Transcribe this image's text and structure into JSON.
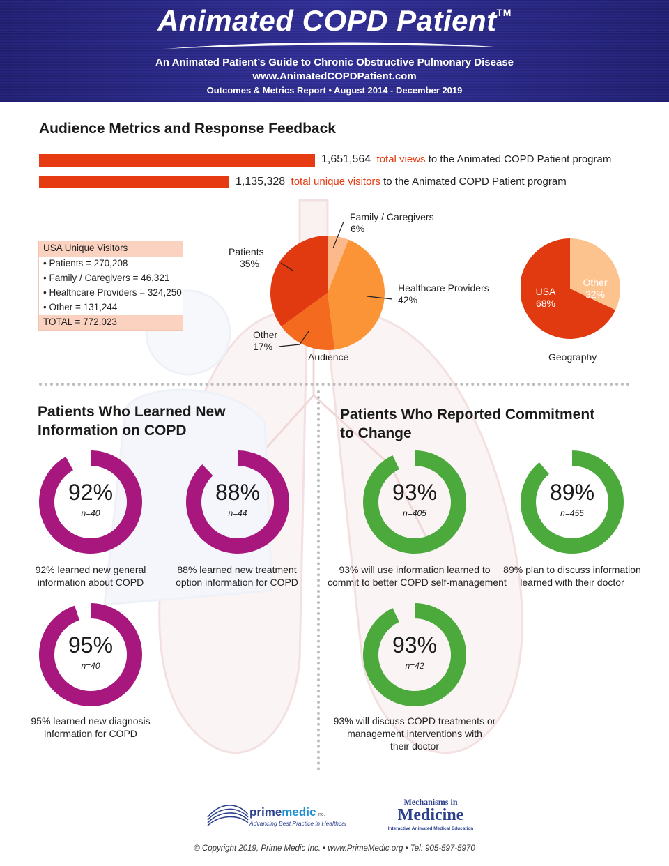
{
  "header": {
    "title": "Animated COPD Patient",
    "tm": "TM",
    "subtitle": "An Animated Patient’s Guide to Chronic Obstructive Pulmonary Disease",
    "url": "www.AnimatedCOPDPatient.com",
    "report": "Outcomes & Metrics Report • August 2014 - December 2019"
  },
  "colors": {
    "header_blue": "#2c2a86",
    "accent_red": "#e63b12",
    "ring_magenta": "#a8177d",
    "ring_green": "#4caa3d"
  },
  "audience": {
    "heading": "Audience Metrics and Response Feedback",
    "views": {
      "value": "1,651,564",
      "highlight": "total views",
      "rest": " to the Animated COPD Patient program"
    },
    "unique": {
      "value": "1,135,328",
      "highlight": "total unique visitors",
      "rest": " to the Animated COPD Patient program"
    }
  },
  "usa_box": {
    "title": "USA Unique Visitors",
    "items": [
      "• Patients = 270,208",
      "• Family / Caregivers = 46,321",
      "• Healthcare Providers = 324,250",
      "• Other = 131,244"
    ],
    "total": "TOTAL = 772,023"
  },
  "chart_data": [
    {
      "type": "pie",
      "caption": "Audience",
      "slices": [
        {
          "label": "Patients",
          "value": 35,
          "display": "35%",
          "color": "#e23a10"
        },
        {
          "label": "Family / Caregivers",
          "value": 6,
          "display": "6%",
          "color": "#fbb98c"
        },
        {
          "label": "Healthcare Providers",
          "value": 42,
          "display": "42%",
          "color": "#fa9437"
        },
        {
          "label": "Other",
          "value": 17,
          "display": "17%",
          "color": "#f46b20"
        }
      ]
    },
    {
      "type": "pie",
      "caption": "Geography",
      "slices": [
        {
          "label": "USA",
          "value": 68,
          "display": "68%",
          "color": "#e23a10"
        },
        {
          "label": "Other",
          "value": 32,
          "display": "32%",
          "color": "#fcc38f"
        }
      ]
    },
    {
      "type": "donut",
      "group": "Patients Who Learned New Information on COPD",
      "color": "#a8177d",
      "items": [
        {
          "value": 92,
          "display": "92%",
          "n": "n=40",
          "caption": [
            "92% learned new general",
            "information about COPD"
          ]
        },
        {
          "value": 88,
          "display": "88%",
          "n": "n=44",
          "caption": [
            "88% learned new treatment",
            "option information for COPD"
          ]
        },
        {
          "value": 95,
          "display": "95%",
          "n": "n=40",
          "caption": [
            "95% learned new diagnosis",
            "information for COPD"
          ]
        }
      ]
    },
    {
      "type": "donut",
      "group": "Patients Who Reported Commitment to Change",
      "color": "#4caa3d",
      "items": [
        {
          "value": 93,
          "display": "93%",
          "n": "n=405",
          "caption": [
            "93% will use information learned to",
            "commit to better COPD self-management"
          ]
        },
        {
          "value": 89,
          "display": "89%",
          "n": "n=455",
          "caption": [
            "89% plan to discuss information",
            "learned with their doctor"
          ]
        },
        {
          "value": 93,
          "display": "93%",
          "n": "n=42",
          "caption": [
            "93% will discuss COPD treatments or",
            "management interventions with",
            "their doctor"
          ]
        }
      ]
    }
  ],
  "sections": {
    "learned_line1": "Patients Who Learned New",
    "learned_line2": "Information on COPD",
    "commit_line1": "Patients Who Reported Commitment",
    "commit_line2": "to Change"
  },
  "footer": {
    "primemedic_a": "prime",
    "primemedic_b": "medic",
    "primemedic_inc": "inc.",
    "primemedic_tag": "Advancing Best Practice in Healthcare",
    "mim_line1": "Mechanisms in",
    "mim_line2": "Medicine",
    "mim_tag": "Interactive Animated Medical Education",
    "copyright": "© Copyright 2019, Prime Medic Inc. • www.PrimeMedic.org • Tel: 905-597-5970"
  }
}
